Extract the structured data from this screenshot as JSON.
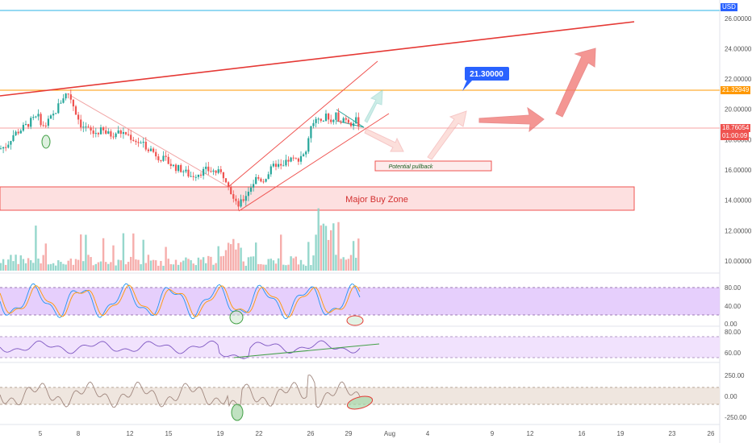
{
  "symbol_badge": {
    "text": "USD",
    "color": "#2962ff"
  },
  "price_labels": {
    "last": "18.76054",
    "countdown": "01:00:09",
    "resistance": "21.32949",
    "last_color": "#ef5350",
    "resistance_color": "#ff9800"
  },
  "callout": {
    "text": "21.30000",
    "color": "#2962ff"
  },
  "annotations": {
    "pullback": "Potential pullback",
    "buy_zone": "Major Buy Zone"
  },
  "chart_data": {
    "type": "candlestick",
    "x_axis": {
      "tick_labels": [
        "5",
        "8",
        "12",
        "15",
        "19",
        "22",
        "26",
        "29",
        "Aug",
        "4",
        "9",
        "12",
        "16",
        "19",
        "23",
        "26"
      ]
    },
    "price_axis": {
      "range": [
        9.2,
        27.0
      ],
      "ticks": [
        10,
        12,
        14,
        16,
        18,
        20,
        22,
        24,
        26
      ],
      "tick_labels": [
        "10.00000",
        "12.00000",
        "14.00000",
        "16.00000",
        "18.00000",
        "20.00000",
        "22.00000",
        "24.00000",
        "26.00000"
      ]
    },
    "key_levels": {
      "top_line": 26.7,
      "resistance": 21.33,
      "last_price": 18.76,
      "buy_zone": [
        13.5,
        15.0
      ]
    },
    "price_path": [
      [
        0,
        17.4
      ],
      [
        8,
        17.6
      ],
      [
        16,
        18.3
      ],
      [
        24,
        18.6
      ],
      [
        32,
        18.9
      ],
      [
        40,
        19.3
      ],
      [
        48,
        19.5
      ],
      [
        54,
        18.8
      ],
      [
        60,
        19.2
      ],
      [
        66,
        19.6
      ],
      [
        72,
        20.2
      ],
      [
        78,
        20.8
      ],
      [
        84,
        21.1
      ],
      [
        88,
        20.7
      ],
      [
        94,
        19.8
      ],
      [
        100,
        19.0
      ],
      [
        108,
        18.7
      ],
      [
        116,
        18.4
      ],
      [
        126,
        18.6
      ],
      [
        136,
        18.3
      ],
      [
        146,
        18.5
      ],
      [
        156,
        18.4
      ],
      [
        166,
        18.0
      ],
      [
        176,
        17.7
      ],
      [
        186,
        17.4
      ],
      [
        196,
        16.9
      ],
      [
        206,
        16.6
      ],
      [
        216,
        16.2
      ],
      [
        226,
        16.0
      ],
      [
        236,
        15.6
      ],
      [
        246,
        15.8
      ],
      [
        256,
        16.0
      ],
      [
        266,
        15.9
      ],
      [
        276,
        15.7
      ],
      [
        282,
        15.3
      ],
      [
        288,
        14.2
      ],
      [
        294,
        13.6
      ],
      [
        300,
        13.9
      ],
      [
        306,
        14.5
      ],
      [
        312,
        15.0
      ],
      [
        318,
        15.5
      ],
      [
        326,
        15.3
      ],
      [
        334,
        15.9
      ],
      [
        342,
        16.4
      ],
      [
        350,
        16.1
      ],
      [
        358,
        16.7
      ],
      [
        366,
        16.6
      ],
      [
        374,
        17.0
      ],
      [
        380,
        17.3
      ],
      [
        386,
        18.8
      ],
      [
        392,
        19.4
      ],
      [
        398,
        19.1
      ],
      [
        404,
        19.6
      ],
      [
        410,
        19.0
      ],
      [
        416,
        19.6
      ],
      [
        422,
        19.3
      ],
      [
        428,
        19.5
      ],
      [
        434,
        19.1
      ],
      [
        440,
        19.3
      ],
      [
        446,
        19.0
      ]
    ],
    "indicators": [
      {
        "name": "stochastic",
        "ticks": [
          "80.00",
          "40.00",
          "0.00"
        ]
      },
      {
        "name": "rsi",
        "ticks": [
          "80.00",
          "60.00"
        ]
      },
      {
        "name": "cci",
        "ticks": [
          "250.00",
          "0.00",
          "-250.00"
        ]
      }
    ]
  }
}
